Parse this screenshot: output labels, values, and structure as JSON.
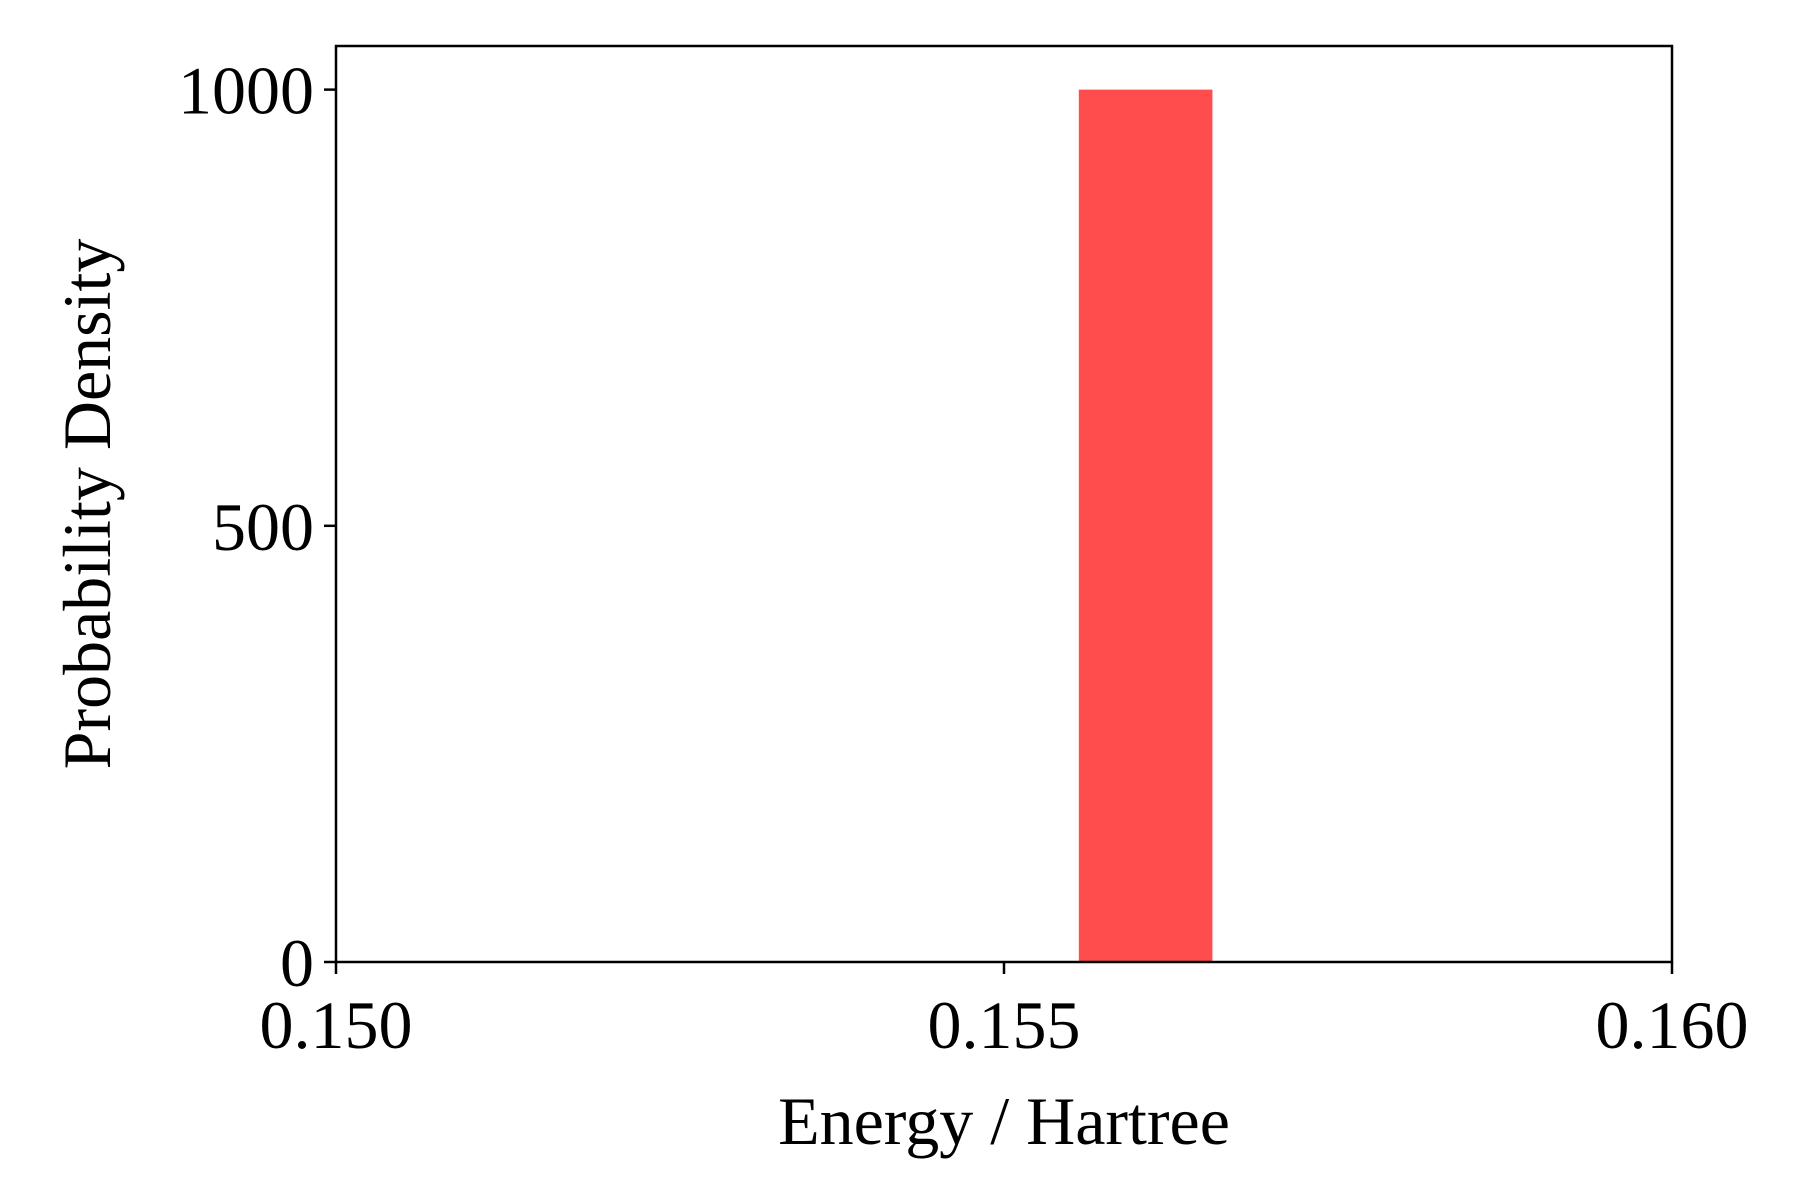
{
  "chart_data": {
    "type": "bar",
    "title": "",
    "xlabel": "Energy / Hartree",
    "ylabel": "Probability Density",
    "xlim": [
      0.15,
      0.16
    ],
    "ylim": [
      0,
      1050
    ],
    "x_ticks": [
      {
        "value": 0.15,
        "label": "0.150"
      },
      {
        "value": 0.155,
        "label": "0.155"
      },
      {
        "value": 0.16,
        "label": "0.160"
      }
    ],
    "y_ticks": [
      {
        "value": 0,
        "label": "0"
      },
      {
        "value": 500,
        "label": "500"
      },
      {
        "value": 1000,
        "label": "1000"
      }
    ],
    "bins": [
      {
        "x_start": 0.15556,
        "x_end": 0.15656,
        "value": 1000
      }
    ],
    "bar_color": "#ff4d4d",
    "grid": false
  }
}
